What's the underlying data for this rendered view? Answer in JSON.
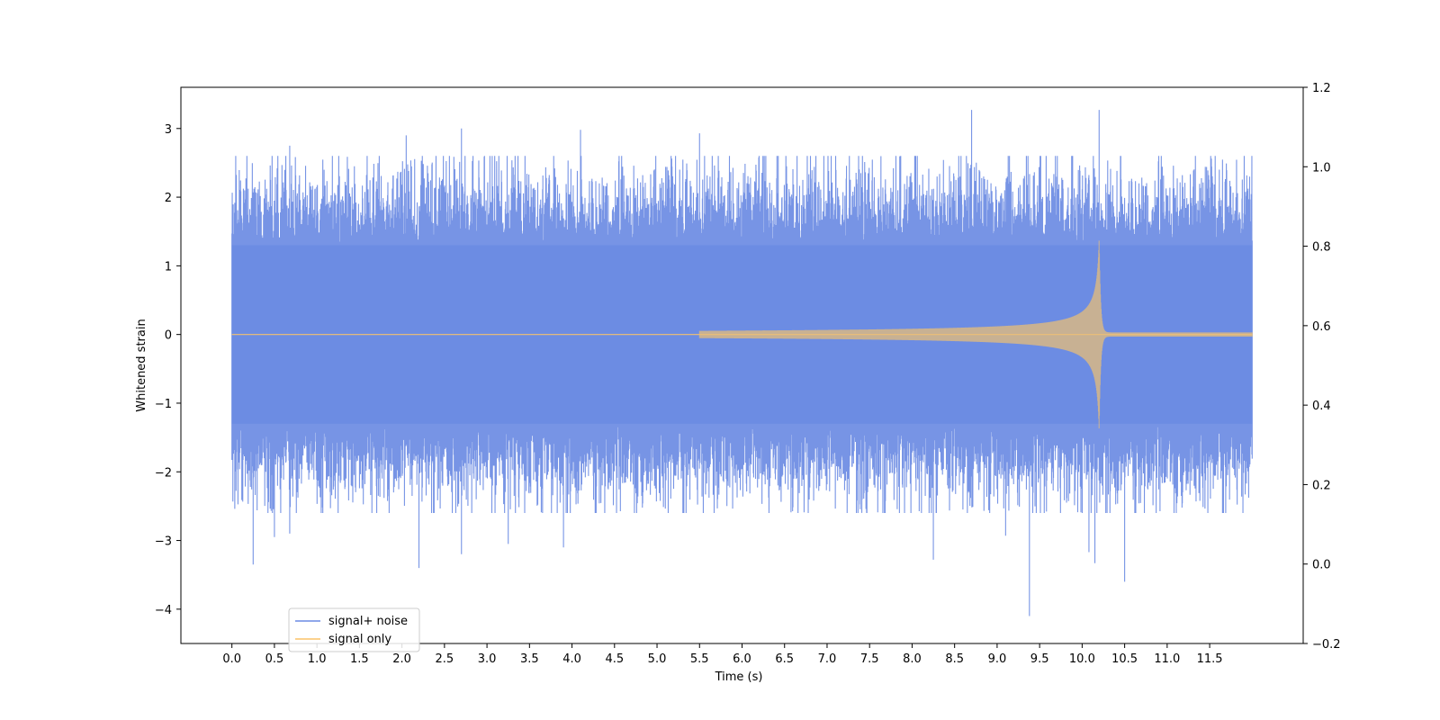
{
  "chart_data": {
    "type": "line",
    "title": "",
    "xlabel": "Time (s)",
    "ylabel": "Whitened strain",
    "xlim": [
      -0.6,
      12.6
    ],
    "ylim": [
      -4.5,
      3.6
    ],
    "y2lim": [
      -0.2,
      1.2
    ],
    "x_ticks": [
      "0.0",
      "0.5",
      "1.0",
      "1.5",
      "2.0",
      "2.5",
      "3.0",
      "3.5",
      "4.0",
      "4.5",
      "5.0",
      "5.5",
      "6.0",
      "6.5",
      "7.0",
      "7.5",
      "8.0",
      "8.5",
      "9.0",
      "9.5",
      "10.0",
      "10.5",
      "11.0",
      "11.5"
    ],
    "y_ticks": [
      "3",
      "2",
      "1",
      "0",
      "−1",
      "−2",
      "−3",
      "−4"
    ],
    "y2_ticks": [
      "1.2",
      "1.0",
      "0.8",
      "0.6",
      "0.4",
      "0.2",
      "0.0",
      "−0.2"
    ],
    "grid": false,
    "legend_position": "lower-left",
    "series": [
      {
        "name": "signal+ noise",
        "color": "#6b8be3",
        "x_range": [
          0.0,
          12.0
        ],
        "noise_envelope": [
          -1.3,
          1.3
        ],
        "peak_points": [
          {
            "x": 0.25,
            "y": -3.35
          },
          {
            "x": 0.5,
            "y": -2.95
          },
          {
            "x": 0.68,
            "y": 2.75
          },
          {
            "x": 0.68,
            "y": -2.9
          },
          {
            "x": 2.05,
            "y": 2.9
          },
          {
            "x": 2.2,
            "y": -3.4
          },
          {
            "x": 2.7,
            "y": 3.0
          },
          {
            "x": 2.7,
            "y": -3.2
          },
          {
            "x": 3.25,
            "y": -3.05
          },
          {
            "x": 3.9,
            "y": -3.1
          },
          {
            "x": 4.1,
            "y": 2.98
          },
          {
            "x": 5.5,
            "y": 2.93
          },
          {
            "x": 8.25,
            "y": -3.28
          },
          {
            "x": 8.7,
            "y": 3.27
          },
          {
            "x": 9.1,
            "y": -2.93
          },
          {
            "x": 9.38,
            "y": -4.1
          },
          {
            "x": 10.08,
            "y": -3.17
          },
          {
            "x": 10.15,
            "y": -3.33
          },
          {
            "x": 10.2,
            "y": 3.27
          },
          {
            "x": 10.5,
            "y": -3.6
          }
        ]
      },
      {
        "name": "signal only",
        "color": "#fbc469",
        "x_range": [
          0.0,
          12.0
        ],
        "chirp_start": 5.5,
        "merger_time": 10.2,
        "peak_amplitude": 1.4,
        "ringdown_amplitude": 0.03
      }
    ]
  }
}
